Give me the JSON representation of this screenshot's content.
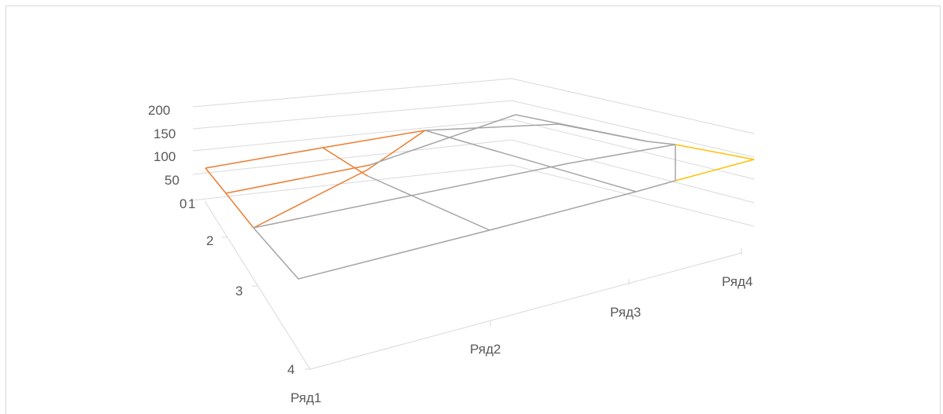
{
  "chart_data": {
    "type": "surface",
    "title": "",
    "categories": [
      "Ряд1",
      "Ряд2",
      "Ряд3",
      "Ряд4"
    ],
    "depth_ticks": [
      "1",
      "2",
      "3",
      "4"
    ],
    "z_ticks": [
      "0",
      "50",
      "100",
      "150",
      "200"
    ],
    "zlim": [
      0,
      200
    ],
    "grid": true,
    "band_colors": [
      "#ED7D31",
      "#A5A5A5",
      "#FFC000"
    ]
  }
}
